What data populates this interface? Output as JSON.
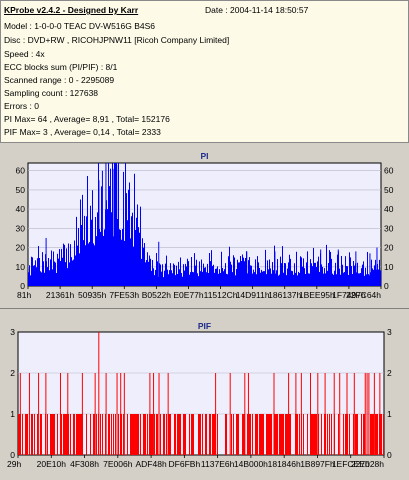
{
  "info": {
    "title": "KProbe v2.4.2 - Designed by Karr",
    "date": "Date : 2004-11-14 18:50:57",
    "lines": [
      "Model : 1-0-0-0 TEAC    DV-W516G         B4S6",
      "Disc : DVD+RW , RICOHJPNW11 [Ricoh Company Limited]",
      "Speed : 4x",
      "ECC blocks sum (PI/PIF) : 8/1",
      "Scanned range : 0 - 2295089",
      "Sampling count : 127638",
      "Errors : 0",
      "PI Max= 64 , Average= 8,91 , Total= 152176",
      "PIF Max= 3 , Average= 0,14 , Total= 2333"
    ]
  },
  "colors": {
    "pi_bar": "#0000ff",
    "pif_bar": "#ff0000",
    "plot_bg": "#eeeefc",
    "info_bg": "#fdfbe8",
    "title": "#1e2d8c"
  },
  "chart_data": [
    {
      "type": "bar",
      "title": "PI",
      "ylim": [
        0,
        64
      ],
      "yticks": [
        0,
        10,
        20,
        30,
        40,
        50,
        60
      ],
      "xtick_labels": [
        "81h",
        "21361h",
        "50935h",
        "7FE53h",
        "B0522h",
        "E0E77h",
        "11512Ch",
        "14D911h",
        "186137h",
        "1BEE95h",
        "1F7497h",
        "22FC64h"
      ],
      "grid": true,
      "series": [
        {
          "color": "#0000ff",
          "profile": [
            [
              0,
              11
            ],
            [
              0.04,
              13
            ],
            [
              0.08,
              15
            ],
            [
              0.12,
              20
            ],
            [
              0.16,
              30
            ],
            [
              0.2,
              45
            ],
            [
              0.23,
              56
            ],
            [
              0.26,
              52
            ],
            [
              0.29,
              40
            ],
            [
              0.32,
              22
            ],
            [
              0.36,
              10
            ],
            [
              0.42,
              10
            ],
            [
              0.5,
              11
            ],
            [
              0.6,
              12
            ],
            [
              0.7,
              12
            ],
            [
              0.8,
              12
            ],
            [
              0.9,
              12
            ],
            [
              0.95,
              11
            ],
            [
              1,
              11
            ]
          ]
        }
      ],
      "peaks": [
        [
          0.22,
          64
        ],
        [
          0.255,
          63
        ],
        [
          0.24,
          61
        ],
        [
          0.21,
          60
        ],
        [
          0.25,
          62
        ],
        [
          0.2,
          55
        ],
        [
          0.05,
          25
        ],
        [
          0.37,
          23
        ],
        [
          0.62,
          18
        ],
        [
          0.7,
          18
        ],
        [
          0.83,
          19
        ],
        [
          0.88,
          19
        ],
        [
          0.93,
          18
        ],
        [
          0.97,
          17
        ],
        [
          0.99,
          20
        ]
      ]
    },
    {
      "type": "bar",
      "title": "PIF",
      "ylim": [
        0,
        3
      ],
      "yticks": [
        0,
        1,
        2,
        3
      ],
      "xtick_labels": [
        "29h",
        "20E10h",
        "4F308h",
        "7E006h",
        "ADF48h",
        "DF6FBh",
        "1137E6h",
        "14B000h",
        "181846h",
        "1B897Fh",
        "1EFCEEh",
        "227028h"
      ],
      "grid": true,
      "series": [
        {
          "color": "#ff0000",
          "level1_fraction": 0.55,
          "twos": [
            0.005,
            0.03,
            0.055,
            0.075,
            0.115,
            0.135,
            0.175,
            0.21,
            0.24,
            0.27,
            0.28,
            0.29,
            0.36,
            0.37,
            0.385,
            0.41,
            0.54,
            0.58,
            0.62,
            0.63,
            0.7,
            0.74,
            0.76,
            0.775,
            0.8,
            0.82,
            0.84,
            0.865,
            0.88,
            0.9,
            0.92,
            0.95,
            0.955,
            0.96,
            0.975,
            0.99
          ],
          "threes": [
            0.22
          ]
        }
      ]
    }
  ]
}
